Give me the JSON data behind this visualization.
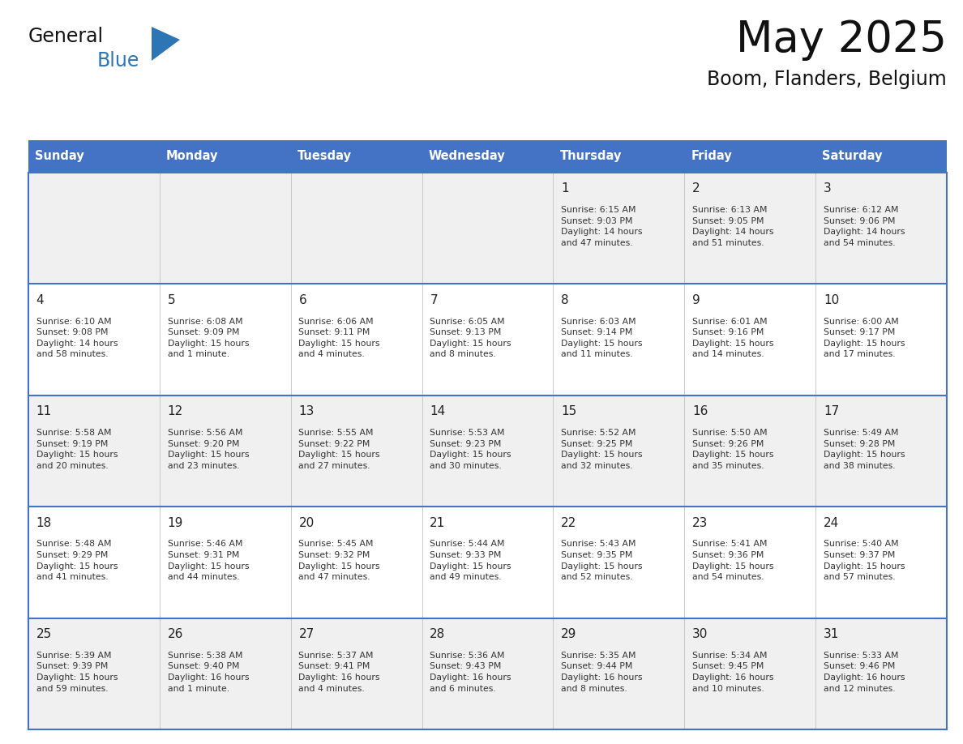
{
  "title": "May 2025",
  "subtitle": "Boom, Flanders, Belgium",
  "header_bg": "#4472C4",
  "header_text_color": "#FFFFFF",
  "day_names": [
    "Sunday",
    "Monday",
    "Tuesday",
    "Wednesday",
    "Thursday",
    "Friday",
    "Saturday"
  ],
  "row_bg_colors": [
    "#F0F0F0",
    "#FFFFFF",
    "#F0F0F0",
    "#FFFFFF",
    "#F0F0F0"
  ],
  "cell_text_color": "#333333",
  "day_num_color": "#222222",
  "logo_general_color": "#1a1a1a",
  "logo_blue_color": "#2E75B6",
  "week_divider_color": "#4472C4",
  "cell_divider_color": "#C0C0C0",
  "outer_border_color": "#4472C4",
  "weeks": [
    [
      {
        "day": "",
        "info": ""
      },
      {
        "day": "",
        "info": ""
      },
      {
        "day": "",
        "info": ""
      },
      {
        "day": "",
        "info": ""
      },
      {
        "day": "1",
        "info": "Sunrise: 6:15 AM\nSunset: 9:03 PM\nDaylight: 14 hours\nand 47 minutes."
      },
      {
        "day": "2",
        "info": "Sunrise: 6:13 AM\nSunset: 9:05 PM\nDaylight: 14 hours\nand 51 minutes."
      },
      {
        "day": "3",
        "info": "Sunrise: 6:12 AM\nSunset: 9:06 PM\nDaylight: 14 hours\nand 54 minutes."
      }
    ],
    [
      {
        "day": "4",
        "info": "Sunrise: 6:10 AM\nSunset: 9:08 PM\nDaylight: 14 hours\nand 58 minutes."
      },
      {
        "day": "5",
        "info": "Sunrise: 6:08 AM\nSunset: 9:09 PM\nDaylight: 15 hours\nand 1 minute."
      },
      {
        "day": "6",
        "info": "Sunrise: 6:06 AM\nSunset: 9:11 PM\nDaylight: 15 hours\nand 4 minutes."
      },
      {
        "day": "7",
        "info": "Sunrise: 6:05 AM\nSunset: 9:13 PM\nDaylight: 15 hours\nand 8 minutes."
      },
      {
        "day": "8",
        "info": "Sunrise: 6:03 AM\nSunset: 9:14 PM\nDaylight: 15 hours\nand 11 minutes."
      },
      {
        "day": "9",
        "info": "Sunrise: 6:01 AM\nSunset: 9:16 PM\nDaylight: 15 hours\nand 14 minutes."
      },
      {
        "day": "10",
        "info": "Sunrise: 6:00 AM\nSunset: 9:17 PM\nDaylight: 15 hours\nand 17 minutes."
      }
    ],
    [
      {
        "day": "11",
        "info": "Sunrise: 5:58 AM\nSunset: 9:19 PM\nDaylight: 15 hours\nand 20 minutes."
      },
      {
        "day": "12",
        "info": "Sunrise: 5:56 AM\nSunset: 9:20 PM\nDaylight: 15 hours\nand 23 minutes."
      },
      {
        "day": "13",
        "info": "Sunrise: 5:55 AM\nSunset: 9:22 PM\nDaylight: 15 hours\nand 27 minutes."
      },
      {
        "day": "14",
        "info": "Sunrise: 5:53 AM\nSunset: 9:23 PM\nDaylight: 15 hours\nand 30 minutes."
      },
      {
        "day": "15",
        "info": "Sunrise: 5:52 AM\nSunset: 9:25 PM\nDaylight: 15 hours\nand 32 minutes."
      },
      {
        "day": "16",
        "info": "Sunrise: 5:50 AM\nSunset: 9:26 PM\nDaylight: 15 hours\nand 35 minutes."
      },
      {
        "day": "17",
        "info": "Sunrise: 5:49 AM\nSunset: 9:28 PM\nDaylight: 15 hours\nand 38 minutes."
      }
    ],
    [
      {
        "day": "18",
        "info": "Sunrise: 5:48 AM\nSunset: 9:29 PM\nDaylight: 15 hours\nand 41 minutes."
      },
      {
        "day": "19",
        "info": "Sunrise: 5:46 AM\nSunset: 9:31 PM\nDaylight: 15 hours\nand 44 minutes."
      },
      {
        "day": "20",
        "info": "Sunrise: 5:45 AM\nSunset: 9:32 PM\nDaylight: 15 hours\nand 47 minutes."
      },
      {
        "day": "21",
        "info": "Sunrise: 5:44 AM\nSunset: 9:33 PM\nDaylight: 15 hours\nand 49 minutes."
      },
      {
        "day": "22",
        "info": "Sunrise: 5:43 AM\nSunset: 9:35 PM\nDaylight: 15 hours\nand 52 minutes."
      },
      {
        "day": "23",
        "info": "Sunrise: 5:41 AM\nSunset: 9:36 PM\nDaylight: 15 hours\nand 54 minutes."
      },
      {
        "day": "24",
        "info": "Sunrise: 5:40 AM\nSunset: 9:37 PM\nDaylight: 15 hours\nand 57 minutes."
      }
    ],
    [
      {
        "day": "25",
        "info": "Sunrise: 5:39 AM\nSunset: 9:39 PM\nDaylight: 15 hours\nand 59 minutes."
      },
      {
        "day": "26",
        "info": "Sunrise: 5:38 AM\nSunset: 9:40 PM\nDaylight: 16 hours\nand 1 minute."
      },
      {
        "day": "27",
        "info": "Sunrise: 5:37 AM\nSunset: 9:41 PM\nDaylight: 16 hours\nand 4 minutes."
      },
      {
        "day": "28",
        "info": "Sunrise: 5:36 AM\nSunset: 9:43 PM\nDaylight: 16 hours\nand 6 minutes."
      },
      {
        "day": "29",
        "info": "Sunrise: 5:35 AM\nSunset: 9:44 PM\nDaylight: 16 hours\nand 8 minutes."
      },
      {
        "day": "30",
        "info": "Sunrise: 5:34 AM\nSunset: 9:45 PM\nDaylight: 16 hours\nand 10 minutes."
      },
      {
        "day": "31",
        "info": "Sunrise: 5:33 AM\nSunset: 9:46 PM\nDaylight: 16 hours\nand 12 minutes."
      }
    ]
  ]
}
